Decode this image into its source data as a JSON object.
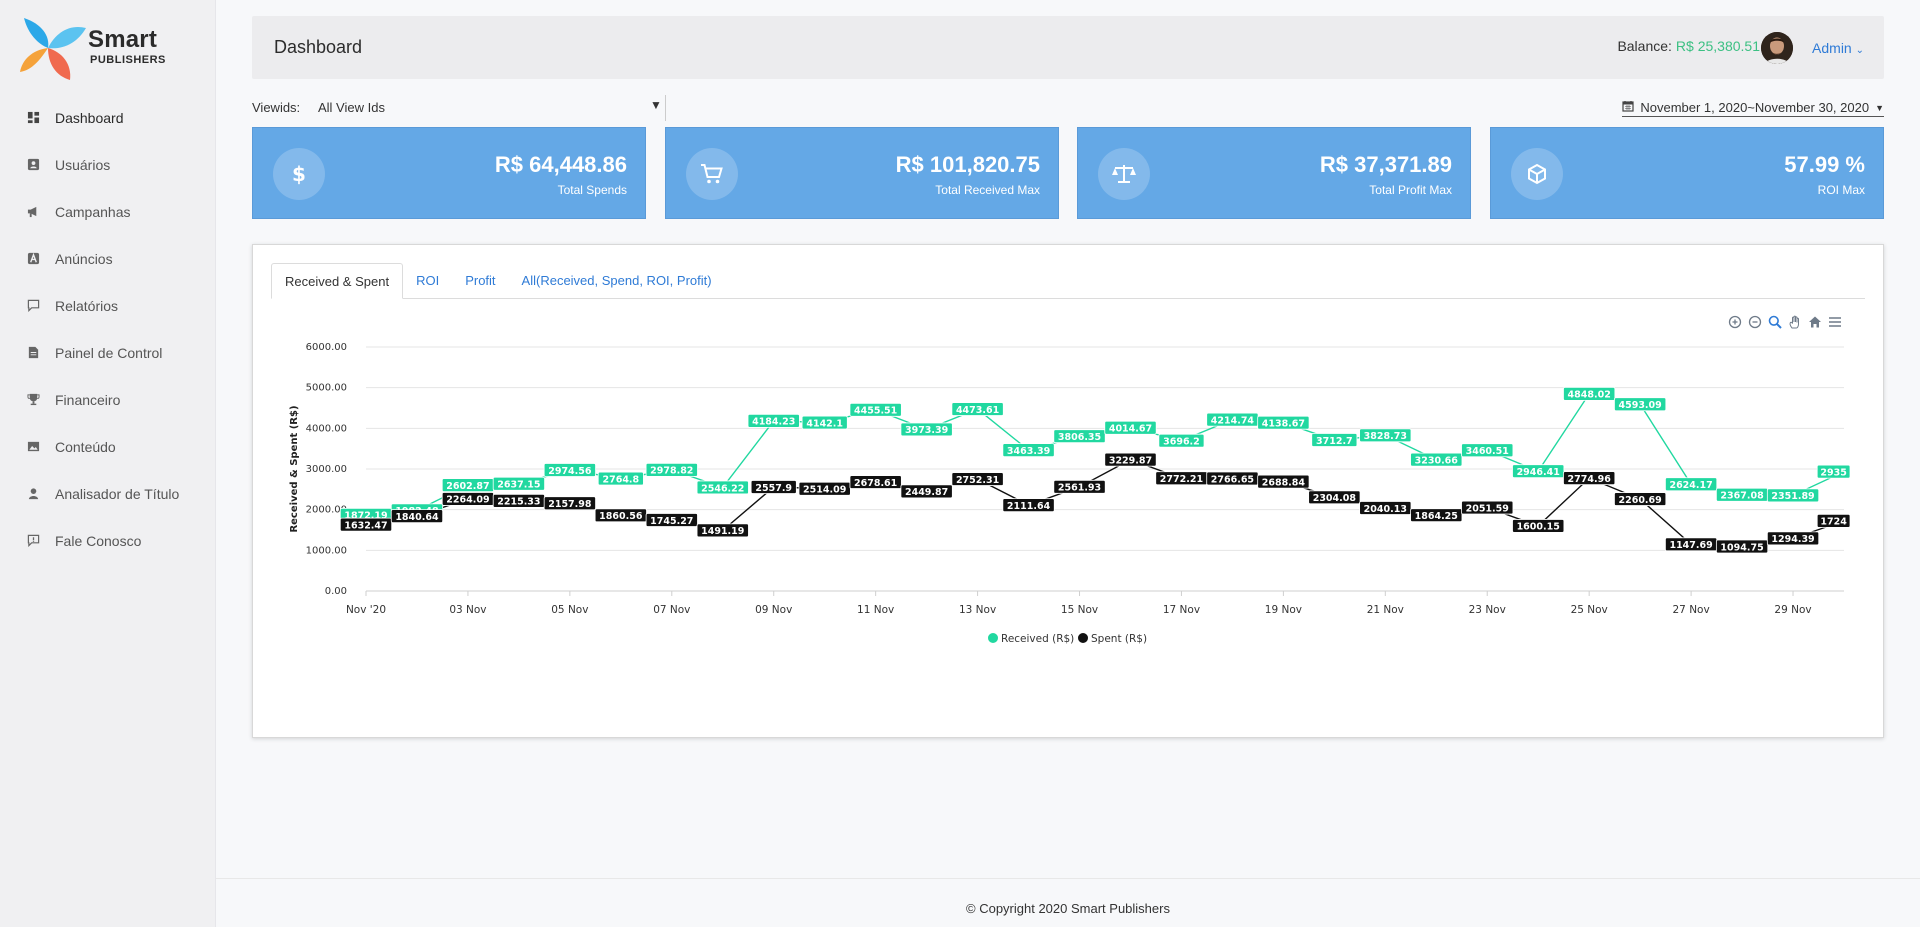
{
  "brand": {
    "name": "Smart",
    "sub": "PUBLISHERS"
  },
  "sidebar": {
    "items": [
      {
        "label": "Dashboard",
        "icon": "dashboard-icon"
      },
      {
        "label": "Usuários",
        "icon": "user-card-icon"
      },
      {
        "label": "Campanhas",
        "icon": "megaphone-icon"
      },
      {
        "label": "Anúncios",
        "icon": "ad-icon"
      },
      {
        "label": "Relatórios",
        "icon": "comment-icon"
      },
      {
        "label": "Painel de Control",
        "icon": "file-icon"
      },
      {
        "label": "Financeiro",
        "icon": "trophy-icon"
      },
      {
        "label": "Conteúdo",
        "icon": "image-icon"
      },
      {
        "label": "Analisador de Título",
        "icon": "user-icon"
      },
      {
        "label": "Fale Conosco",
        "icon": "feedback-icon"
      }
    ]
  },
  "header": {
    "title": "Dashboard",
    "balance_label": "Balance:",
    "balance_value": "R$ 25,380.51",
    "user": "Admin"
  },
  "filters": {
    "viewids_label": "Viewids:",
    "viewids_value": "All View Ids",
    "date_range": "November 1, 2020~November 30, 2020"
  },
  "cards": [
    {
      "value": "R$ 64,448.86",
      "label": "Total Spends",
      "icon": "dollar-icon"
    },
    {
      "value": "R$ 101,820.75",
      "label": "Total Received Max",
      "icon": "cart-icon"
    },
    {
      "value": "R$ 37,371.89",
      "label": "Total Profit Max",
      "icon": "scale-icon"
    },
    {
      "value": "57.99 %",
      "label": "ROI Max",
      "icon": "box-icon"
    }
  ],
  "tabs": [
    "Received & Spent",
    "ROI",
    "Profit",
    "All(Received, Spend, ROI, Profit)"
  ],
  "colors": {
    "received": "#21d8a0",
    "spent": "#111111",
    "card": "#64a8e6",
    "link": "#2f7bd6"
  },
  "chart_data": {
    "type": "line",
    "ylabel": "Received & Spent (R$)",
    "ylim": [
      0,
      6000
    ],
    "y_ticks": [
      "0.00",
      "1000.00",
      "2000.00",
      "3000.00",
      "4000.00",
      "5000.00",
      "6000.00"
    ],
    "x_ticks": [
      "Nov '20",
      "03 Nov",
      "05 Nov",
      "07 Nov",
      "09 Nov",
      "11 Nov",
      "13 Nov",
      "15 Nov",
      "17 Nov",
      "19 Nov",
      "21 Nov",
      "23 Nov",
      "25 Nov",
      "27 Nov",
      "29 Nov"
    ],
    "x": [
      "2020-11-01",
      "2020-11-02",
      "2020-11-03",
      "2020-11-04",
      "2020-11-05",
      "2020-11-06",
      "2020-11-07",
      "2020-11-08",
      "2020-11-09",
      "2020-11-10",
      "2020-11-11",
      "2020-11-12",
      "2020-11-13",
      "2020-11-14",
      "2020-11-15",
      "2020-11-16",
      "2020-11-17",
      "2020-11-18",
      "2020-11-19",
      "2020-11-20",
      "2020-11-21",
      "2020-11-22",
      "2020-11-23",
      "2020-11-24",
      "2020-11-25",
      "2020-11-26",
      "2020-11-27",
      "2020-11-28",
      "2020-11-29",
      "2020-11-30"
    ],
    "series": [
      {
        "name": "Received (R$)",
        "values": [
          1872.19,
          1982.48,
          2602.87,
          2637.15,
          2974.56,
          2764.8,
          2978.82,
          2546.22,
          4184.23,
          4142.1,
          4455.51,
          3973.39,
          4473.61,
          3463.39,
          3806.35,
          4014.67,
          3696.2,
          4214.74,
          4138.67,
          3712.7,
          3828.73,
          3230.66,
          3460.51,
          2946.41,
          4848.02,
          4593.09,
          2624.17,
          2367.08,
          2351.89,
          2935
        ]
      },
      {
        "name": "Spent (R$)",
        "values": [
          1632.47,
          1840.64,
          2264.09,
          2215.33,
          2157.98,
          1860.56,
          1745.27,
          1491.19,
          2557.9,
          2514.09,
          2678.61,
          2449.87,
          2752.31,
          2111.64,
          2561.93,
          3229.87,
          2772.21,
          2766.65,
          2688.84,
          2304.08,
          2040.13,
          1864.25,
          2051.59,
          1600.15,
          2774.96,
          2260.69,
          1147.69,
          1094.75,
          1294.39,
          1724
        ]
      }
    ],
    "grid": true,
    "legend": "bottom-center"
  },
  "footer": "© Copyright 2020 Smart Publishers"
}
